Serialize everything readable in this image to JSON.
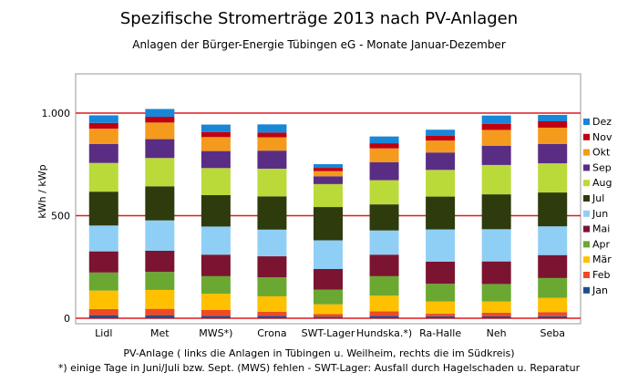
{
  "title": "Spezifische Stromerträge 2013 nach PV-Anlagen",
  "subtitle": "Anlagen der Bürger-Energie Tübingen eG -  Monate Januar-Dezember",
  "xlabel": "PV-Anlage ( links die Anlagen in Tübingen u. Weilheim, rechts die im Südkreis)",
  "footnote": "*) einige Tage in Juni/Juli bzw. Sept. (MWS) fehlen - SWT-Lager: Ausfall durch Hagelschaden u. Reparatur",
  "chart_data": {
    "type": "bar",
    "stacked": true,
    "title": "Spezifische Stromerträge 2013 nach PV-Anlagen",
    "subtitle": "Anlagen der Bürger-Energie Tübingen eG -  Monate Januar-Dezember",
    "xlabel": "PV-Anlage ( links die Anlagen in Tübingen u. Weilheim, rechts die im Südkreis)",
    "ylabel": "kWh / kWp",
    "ylim": [
      0,
      1000
    ],
    "yticks": [
      0,
      500,
      1000
    ],
    "ytick_labels": [
      "0",
      "500",
      "1.000"
    ],
    "grid": "horizontal red lines at 0, 500 and 1.000",
    "legend_position": "right",
    "categories": [
      "Lidl",
      "Met",
      "MWS*)",
      "Crona",
      "SWT-Lager",
      "Hundska.*)",
      "Ra-Halle",
      "Neh",
      "Seba"
    ],
    "series": [
      {
        "name": "Jan",
        "color": "#1f4e8c",
        "values": [
          15,
          15,
          12,
          12,
          8,
          12,
          10,
          9,
          10
        ]
      },
      {
        "name": "Feb",
        "color": "#f04a23",
        "values": [
          30,
          31,
          28,
          20,
          12,
          22,
          12,
          18,
          20
        ]
      },
      {
        "name": "Mär",
        "color": "#ffc000",
        "values": [
          90,
          92,
          80,
          75,
          48,
          76,
          60,
          55,
          70
        ]
      },
      {
        "name": "Apr",
        "color": "#6aa832",
        "values": [
          88,
          88,
          85,
          93,
          72,
          95,
          86,
          85,
          96
        ]
      },
      {
        "name": "Mai",
        "color": "#7b1431",
        "values": [
          103,
          103,
          105,
          102,
          100,
          105,
          108,
          110,
          112
        ]
      },
      {
        "name": "Jun",
        "color": "#8fcff5",
        "values": [
          126,
          148,
          137,
          130,
          140,
          118,
          157,
          157,
          140
        ]
      },
      {
        "name": "Jul",
        "color": "#2e3b0c",
        "values": [
          165,
          166,
          153,
          162,
          162,
          127,
          160,
          170,
          165
        ]
      },
      {
        "name": "Aug",
        "color": "#bada3a",
        "values": [
          140,
          138,
          132,
          135,
          112,
          118,
          130,
          143,
          142
        ]
      },
      {
        "name": "Sep",
        "color": "#5a2d84",
        "values": [
          92,
          92,
          83,
          88,
          38,
          87,
          85,
          93,
          94
        ]
      },
      {
        "name": "Okt",
        "color": "#f49a1c",
        "values": [
          75,
          81,
          68,
          65,
          25,
          68,
          58,
          78,
          80
        ]
      },
      {
        "name": "Nov",
        "color": "#c00010",
        "values": [
          28,
          28,
          25,
          23,
          16,
          25,
          23,
          30,
          31
        ]
      },
      {
        "name": "Dez",
        "color": "#1986d8",
        "values": [
          37,
          38,
          36,
          40,
          18,
          33,
          30,
          40,
          31
        ]
      }
    ]
  }
}
